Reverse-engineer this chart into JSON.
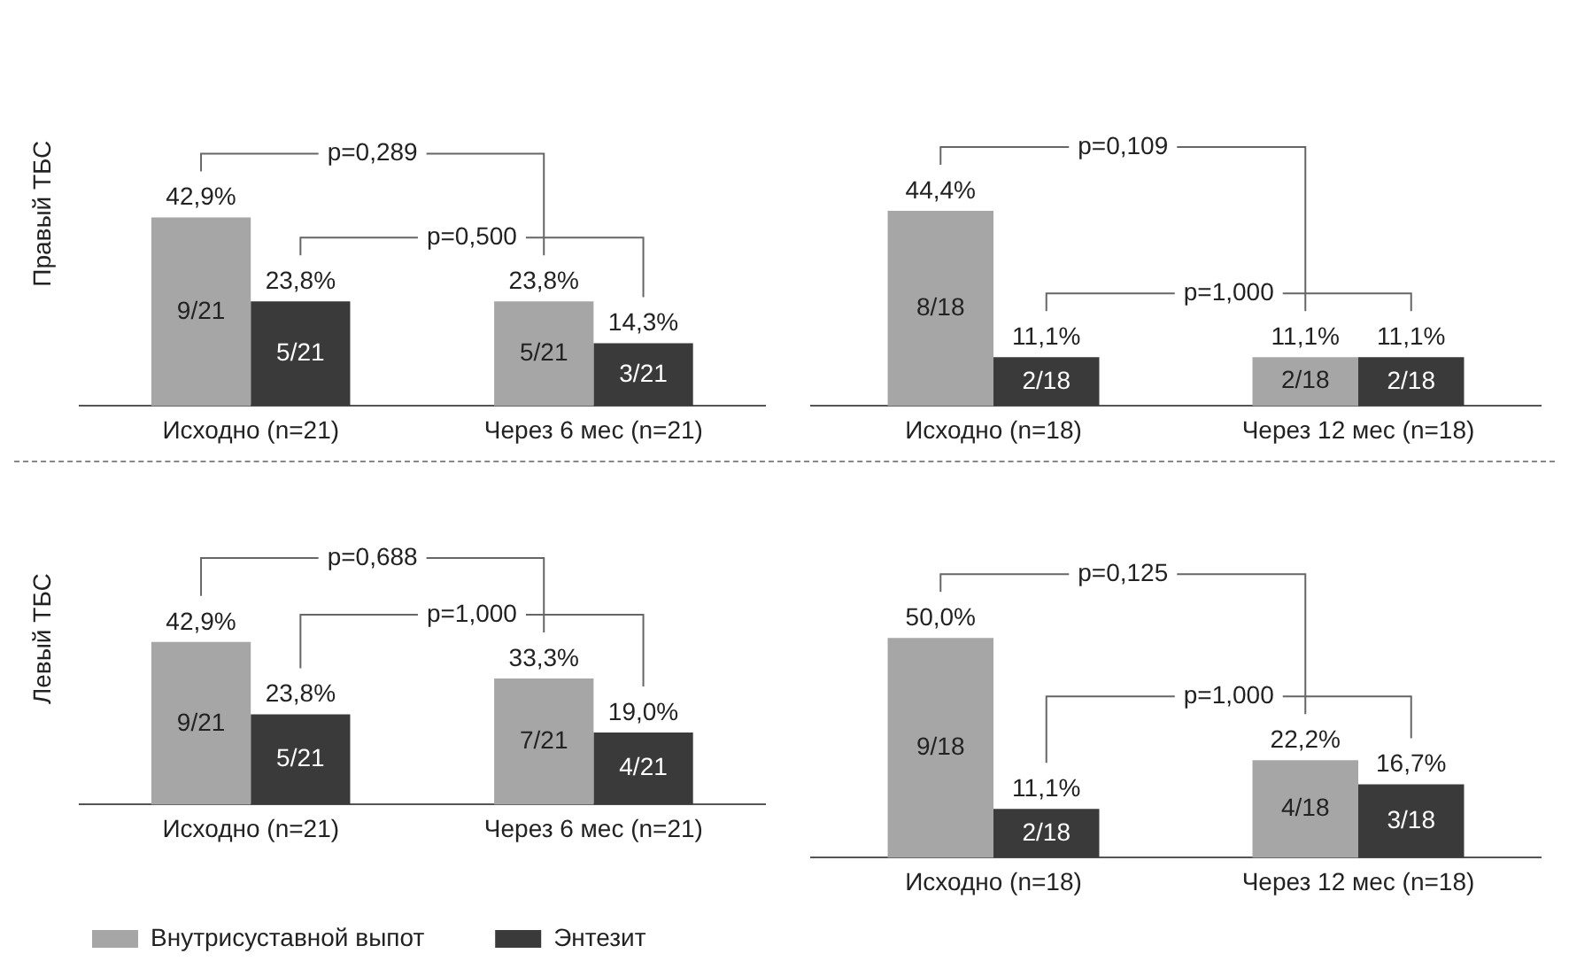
{
  "chart_data": [
    {
      "type": "bar",
      "ylabel": "Правый ТБС",
      "categories": [
        "Исходно (n=21)",
        "Через 6 мес (n=21)"
      ],
      "tick_labels": "x",
      "grid": false,
      "series": [
        {
          "color": "#a6a6a6",
          "values": [
            42.9,
            23.8
          ],
          "value_labels": [
            "42,9%",
            "23,8%"
          ]
        },
        {
          "color": "#3a3a3a",
          "values": [
            23.8,
            14.3
          ],
          "value_labels": [
            "23,8%",
            "14,3%"
          ]
        }
      ],
      "annotations": [
        "p=0,289",
        "p=0,500",
        {
          "text": "9/21",
          "x": "Исходно (n=21)",
          "y": 21.4
        },
        {
          "text": "5/21",
          "x": "Исходно (n=21)",
          "y": 11.9
        },
        {
          "text": "5/21",
          "x": "Через 6 мес (n=21)",
          "y": 11.9
        },
        {
          "text": "3/21",
          "x": "Через 6 мес (n=21)",
          "y": 7.1
        }
      ]
    },
    {
      "type": "bar",
      "categories": [
        "Исходно (n=18)",
        "Через 12 мес (n=18)"
      ],
      "tick_labels": "x",
      "grid": false,
      "series": [
        {
          "color": "#a6a6a6",
          "values": [
            44.4,
            11.1
          ],
          "value_labels": [
            "44,4%",
            "11,1%"
          ]
        },
        {
          "color": "#3a3a3a",
          "values": [
            11.1,
            11.1
          ],
          "value_labels": [
            "11,1%",
            "11,1%"
          ]
        }
      ],
      "annotations": [
        "p=0,109",
        "p=1,000",
        {
          "text": "8/18",
          "x": "Исходно (n=18)",
          "y": 22.2
        },
        {
          "text": "2/18",
          "x": "Исходно (n=18)",
          "y": 5.5
        },
        {
          "text": "2/18",
          "x": "Через 12 мес (n=18)",
          "y": 5.6
        },
        {
          "text": "2/18",
          "x": "Через 12 мес (n=18)",
          "y": 5.5
        }
      ]
    },
    {
      "type": "bar",
      "ylabel": "Левый ТБС",
      "categories": [
        "Исходно (n=21)",
        "Через 6 мес (n=21)"
      ],
      "tick_labels": "x",
      "grid": false,
      "legend": "bottom",
      "series": [
        {
          "name": "Внутрисуставной выпот",
          "color": "#a6a6a6",
          "values": [
            42.9,
            33.3
          ],
          "value_labels": [
            "42,9%",
            "33,3%"
          ]
        },
        {
          "name": "Энтезит",
          "color": "#3a3a3a",
          "values": [
            23.8,
            19.0
          ],
          "value_labels": [
            "23,8%",
            "19,0%"
          ]
        }
      ],
      "annotations": [
        "p=0,688",
        "p=1,000",
        {
          "text": "9/21",
          "x": "Исходно (n=21)",
          "y": 21.4
        },
        {
          "text": "5/21",
          "x": "Исходно (n=21)",
          "y": 11.9
        },
        {
          "text": "7/21",
          "x": "Через 6 мес (n=21)",
          "y": 16.6
        },
        {
          "text": "4/21",
          "x": "Через 6 мес (n=21)",
          "y": 9.5
        }
      ]
    },
    {
      "type": "bar",
      "categories": [
        "Исходно (n=18)",
        "Через 12 мес (n=18)"
      ],
      "tick_labels": "x",
      "grid": false,
      "series": [
        {
          "color": "#a6a6a6",
          "values": [
            50.0,
            22.2
          ],
          "value_labels": [
            "50,0%",
            "22,2%"
          ]
        },
        {
          "color": "#3a3a3a",
          "values": [
            11.1,
            16.7
          ],
          "value_labels": [
            "11,1%",
            "16,7%"
          ]
        }
      ],
      "annotations": [
        "p=0,125",
        "p=1,000",
        {
          "text": "9/18",
          "x": "Исходно (n=18)",
          "y": 25.0
        },
        {
          "text": "2/18",
          "x": "Исходно (n=18)",
          "y": 5.5
        },
        {
          "text": "4/18",
          "x": "Через 12 мес (n=18)",
          "y": 11.1
        },
        {
          "text": "3/18",
          "x": "Через 12 мес (n=18)",
          "y": 8.3
        }
      ]
    }
  ]
}
